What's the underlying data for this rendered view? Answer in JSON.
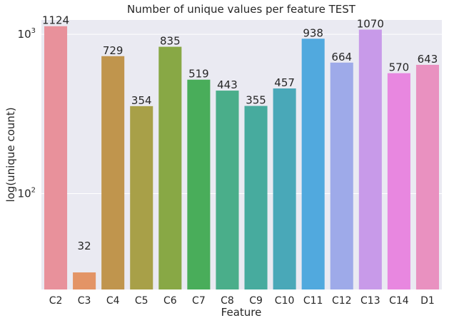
{
  "chart_data": {
    "type": "bar",
    "title": "Number of unique values per feature TEST",
    "xlabel": "Feature",
    "ylabel": "log(unique count)",
    "yscale": "log",
    "ylim": [
      25,
      1230
    ],
    "ytick_labels": [
      {
        "value": 100,
        "base": "10",
        "exp": "2"
      },
      {
        "value": 1000,
        "base": "10",
        "exp": "3"
      }
    ],
    "grid": true,
    "categories": [
      "C2",
      "C3",
      "C4",
      "C5",
      "C6",
      "C7",
      "C8",
      "C9",
      "C10",
      "C11",
      "C12",
      "C13",
      "C14",
      "D1"
    ],
    "values": [
      1124,
      32,
      729,
      354,
      835,
      519,
      443,
      355,
      457,
      938,
      664,
      1070,
      570,
      643
    ],
    "colors": [
      "#e8919b",
      "#e39466",
      "#c0954d",
      "#a8a048",
      "#88a845",
      "#49ad5a",
      "#4aae8a",
      "#47ab9e",
      "#49a8b8",
      "#51a9de",
      "#9eaae9",
      "#c89ae9",
      "#e887e0",
      "#e991c0"
    ],
    "background": "#eaeaf2",
    "grid_color": "#ffffff"
  }
}
